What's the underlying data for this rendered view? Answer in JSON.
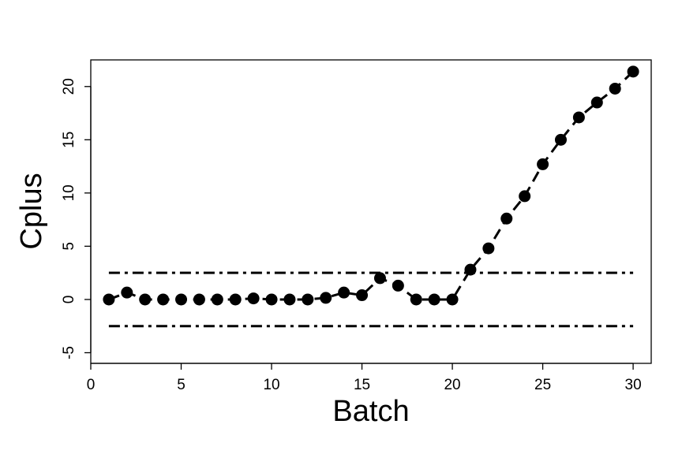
{
  "chart_data": {
    "type": "line",
    "title": "",
    "xlabel": "Batch",
    "ylabel": "Cplus",
    "xlim": [
      0,
      31
    ],
    "ylim": [
      -6,
      22.5
    ],
    "x_ticks": [
      0,
      5,
      10,
      15,
      20,
      25,
      30
    ],
    "y_ticks": [
      -5,
      0,
      5,
      10,
      15,
      20
    ],
    "grid": false,
    "legend": "none",
    "series": [
      {
        "x": [
          1,
          2,
          3,
          4,
          5,
          6,
          7,
          8,
          9,
          10,
          11,
          12,
          13,
          14,
          15,
          16,
          17,
          18,
          19,
          20,
          21,
          22,
          23,
          24,
          25,
          26,
          27,
          28,
          29,
          30
        ],
        "values": [
          0,
          0.65,
          0,
          0,
          0,
          0,
          0,
          0,
          0.1,
          0,
          0,
          0,
          0.15,
          0.65,
          0.4,
          2.0,
          1.3,
          0,
          0,
          0,
          2.8,
          4.8,
          7.6,
          9.7,
          12.7,
          15.0,
          17.1,
          18.5,
          19.8,
          21.4
        ],
        "style": "dashed",
        "marker": "filled-circle",
        "color": "#000000"
      }
    ],
    "reference_lines": [
      {
        "y": 2.5,
        "x_range": [
          1,
          30
        ],
        "style": "dash-dot",
        "color": "#000000"
      },
      {
        "y": -2.5,
        "x_range": [
          1,
          30
        ],
        "style": "dash-dot",
        "color": "#000000"
      }
    ]
  }
}
